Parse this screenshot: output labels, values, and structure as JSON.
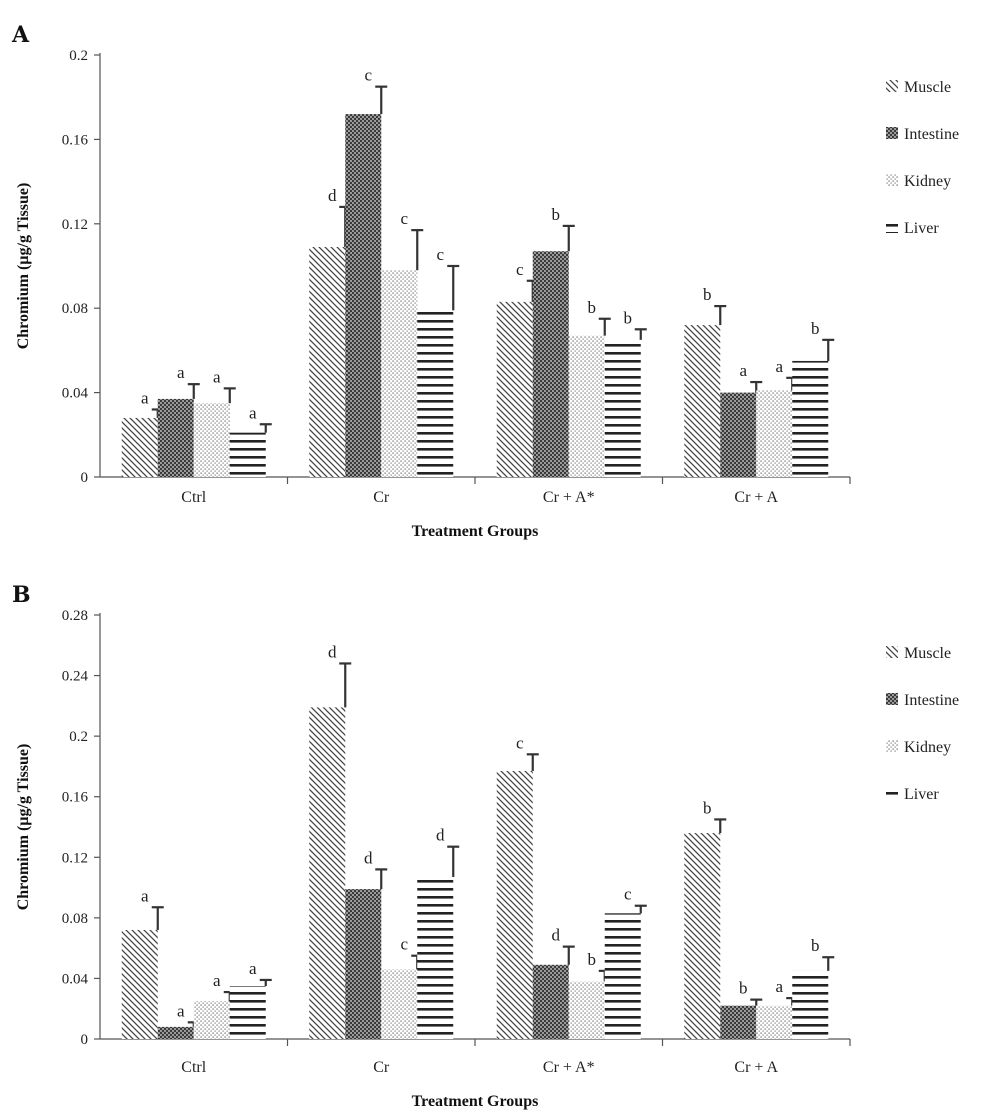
{
  "chart_data": [
    {
      "type": "bar",
      "panel": "A",
      "ylabel": "Chromium (µg/g Tissue)",
      "xlabel": "Treatment Groups",
      "ylim": [
        0,
        0.2
      ],
      "yticks": [
        "0",
        "0.04",
        "0.08",
        "0.12",
        "0.16",
        "0.2"
      ],
      "ytick_values": [
        0,
        0.04,
        0.08,
        0.12,
        0.16,
        0.2
      ],
      "categories": [
        "Ctrl",
        "Cr",
        "Cr + A*",
        "Cr + A"
      ],
      "legend_position": "right",
      "series": [
        {
          "name": "Muscle",
          "values": [
            0.028,
            0.109,
            0.083,
            0.072
          ],
          "errors": [
            0.004,
            0.019,
            0.01,
            0.009
          ],
          "labels": [
            "a",
            "d",
            "c",
            "b"
          ]
        },
        {
          "name": "Intestine",
          "values": [
            0.037,
            0.172,
            0.107,
            0.04
          ],
          "errors": [
            0.007,
            0.013,
            0.012,
            0.005
          ],
          "labels": [
            "a",
            "c",
            "b",
            "a"
          ]
        },
        {
          "name": "Kidney",
          "values": [
            0.035,
            0.098,
            0.067,
            0.041
          ],
          "errors": [
            0.007,
            0.019,
            0.008,
            0.006
          ],
          "labels": [
            "a",
            "c",
            "b",
            "a"
          ]
        },
        {
          "name": "Liver",
          "values": [
            0.021,
            0.079,
            0.065,
            0.055
          ],
          "errors": [
            0.004,
            0.021,
            0.005,
            0.01
          ],
          "labels": [
            "a",
            "c",
            "b",
            "b"
          ]
        }
      ]
    },
    {
      "type": "bar",
      "panel": "B",
      "ylabel": "Chromium (µg/g Tissue)",
      "xlabel": "Treatment Groups",
      "ylim": [
        0,
        0.28
      ],
      "yticks": [
        "0",
        "0.04",
        "0.08",
        "0.12",
        "0.16",
        "0.2",
        "0.24",
        "0.28"
      ],
      "ytick_values": [
        0,
        0.04,
        0.08,
        0.12,
        0.16,
        0.2,
        0.24,
        0.28
      ],
      "categories": [
        "Ctrl",
        "Cr",
        "Cr + A*",
        "Cr + A"
      ],
      "legend_position": "right",
      "series": [
        {
          "name": "Muscle",
          "values": [
            0.072,
            0.219,
            0.177,
            0.136
          ],
          "errors": [
            0.015,
            0.029,
            0.011,
            0.009
          ],
          "labels": [
            "a",
            "d",
            "c",
            "b"
          ]
        },
        {
          "name": "Intestine",
          "values": [
            0.008,
            0.099,
            0.049,
            0.022
          ],
          "errors": [
            0.003,
            0.013,
            0.012,
            0.004
          ],
          "labels": [
            "a",
            "d",
            "d",
            "b"
          ]
        },
        {
          "name": "Kidney",
          "values": [
            0.025,
            0.046,
            0.038,
            0.022
          ],
          "errors": [
            0.006,
            0.009,
            0.007,
            0.005
          ],
          "labels": [
            "a",
            "c",
            "b",
            "a"
          ]
        },
        {
          "name": "Liver",
          "values": [
            0.035,
            0.107,
            0.083,
            0.045
          ],
          "errors": [
            0.004,
            0.02,
            0.005,
            0.009
          ],
          "labels": [
            "a",
            "d",
            "c",
            "b"
          ]
        }
      ]
    }
  ]
}
